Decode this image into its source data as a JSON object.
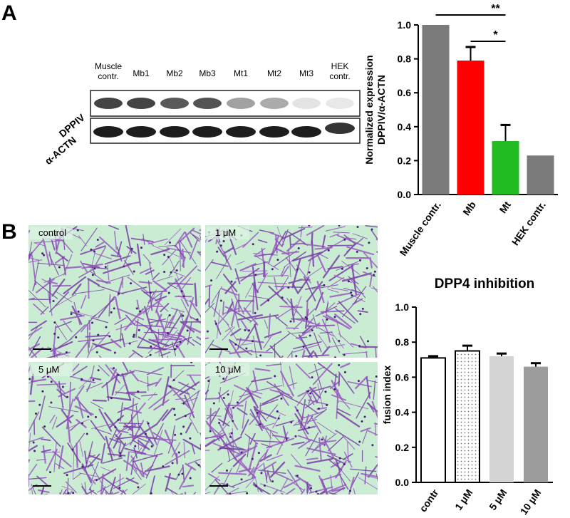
{
  "panel_labels": [
    "A",
    "B"
  ],
  "blot": {
    "lanes": [
      [
        "Muscle",
        "contr."
      ],
      [
        "Mb1"
      ],
      [
        "Mb2"
      ],
      [
        "Mb3"
      ],
      [
        "Mt1"
      ],
      [
        "Mt2"
      ],
      [
        "Mt3"
      ],
      [
        "HEK",
        "contr."
      ]
    ],
    "rows": [
      "DPPIV",
      "α-ACTN"
    ]
  },
  "micrographs": [
    "control",
    "1 μM",
    "5 μM",
    "10 μM"
  ],
  "chart_data": [
    {
      "type": "bar",
      "ylabel": [
        "Normalized expression",
        "DPPIV/α-ACTN"
      ],
      "categories": [
        "Muscle contr.",
        "Mb",
        "Mt",
        "HEK contr."
      ],
      "values": [
        1.0,
        0.79,
        0.315,
        0.23
      ],
      "errors": [
        0,
        0.08,
        0.095,
        0
      ],
      "colors": [
        "#7a7a7a",
        "#ff0000",
        "#22bb22",
        "#7a7a7a"
      ],
      "hatch": [
        false,
        false,
        false,
        false
      ],
      "annotations": [
        "**",
        "*"
      ],
      "ylim": [
        0,
        1
      ],
      "yticks": [
        {
          "value": 0,
          "label": "0.0"
        },
        0.2,
        0.4,
        0.6,
        0.8,
        {
          "value": 1,
          "label": "1.0"
        }
      ]
    },
    {
      "type": "bar",
      "title": "DPP4 inhibition",
      "ylabel": [
        "fusion index"
      ],
      "categories": [
        "contr",
        "1 μM",
        "5 μM",
        "10 μM"
      ],
      "values": [
        0.71,
        0.75,
        0.72,
        0.66
      ],
      "errors": [
        0.01,
        0.03,
        0.015,
        0.02
      ],
      "colors": [
        "#ffffff",
        "#ffffff",
        "#d4d4d4",
        "#9c9c9c"
      ],
      "hatch": [
        false,
        true,
        false,
        false
      ],
      "ylim": [
        0,
        1
      ],
      "yticks": [
        {
          "value": 0,
          "label": "0.0"
        },
        0.2,
        0.4,
        0.6,
        0.8,
        {
          "value": 1,
          "label": "1.0"
        }
      ]
    }
  ]
}
